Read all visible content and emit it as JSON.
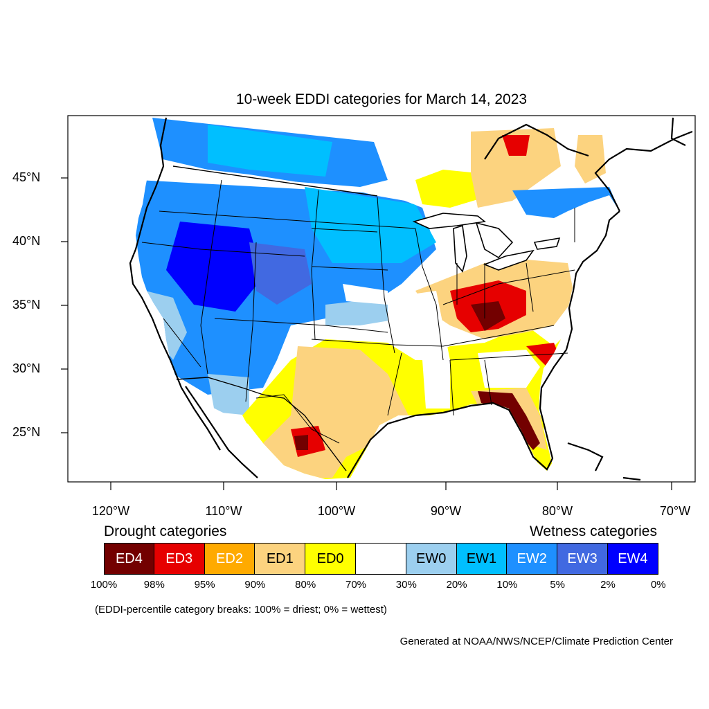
{
  "title": "10-week EDDI categories for March 14, 2023",
  "lat_labels": [
    "45°N",
    "40°N",
    "35°N",
    "30°N",
    "25°N"
  ],
  "lon_labels": [
    "120°W",
    "110°W",
    "100°W",
    "90°W",
    "80°W",
    "70°W"
  ],
  "legend": {
    "drought_heading": "Drought categories",
    "wetness_heading": "Wetness categories",
    "categories": [
      {
        "label": "ED4",
        "color": "#730000",
        "text_color": "#ffffff"
      },
      {
        "label": "ED3",
        "color": "#e60000",
        "text_color": "#ffffff"
      },
      {
        "label": "ED2",
        "color": "#ffaa00",
        "text_color": "#ffffff"
      },
      {
        "label": "ED1",
        "color": "#fcd37f",
        "text_color": "#000000"
      },
      {
        "label": "ED0",
        "color": "#ffff00",
        "text_color": "#000000"
      },
      {
        "label": "",
        "color": "#ffffff",
        "text_color": "#000000"
      },
      {
        "label": "EW0",
        "color": "#9ccfef",
        "text_color": "#000000"
      },
      {
        "label": "EW1",
        "color": "#00bfff",
        "text_color": "#000000"
      },
      {
        "label": "EW2",
        "color": "#1e90ff",
        "text_color": "#ffffff"
      },
      {
        "label": "EW3",
        "color": "#4169e1",
        "text_color": "#ffffff"
      },
      {
        "label": "EW4",
        "color": "#0000ff",
        "text_color": "#ffffff"
      }
    ],
    "percent_breaks": [
      "100%",
      "98%",
      "95%",
      "90%",
      "80%",
      "70%",
      "30%",
      "20%",
      "10%",
      "5%",
      "2%",
      "0%"
    ]
  },
  "note": "(EDDI-percentile category breaks: 100% = driest; 0% = wettest)",
  "credit": "Generated at NOAA/NWS/NCEP/Climate Prediction Center"
}
